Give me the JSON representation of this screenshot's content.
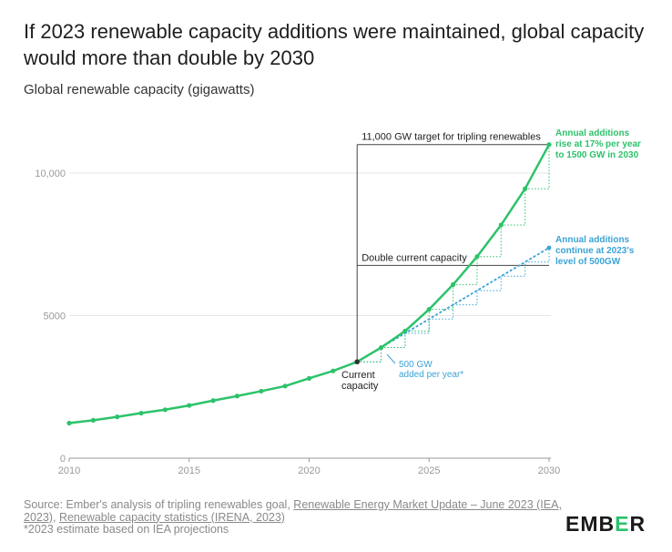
{
  "title": "If 2023 renewable capacity additions were maintained, global capacity would more than double by 2030",
  "subtitle": "Global renewable capacity (gigawatts)",
  "source": {
    "prefix": "Source: Ember's analysis of tripling renewables goal, ",
    "link1": "Renewable Energy Market Update – June 2023 (IEA, 2023)",
    "sep": ", ",
    "link2": "Renewable capacity statistics (IRENA, 2023)",
    "footnote": "*2023 estimate based on IEA projections"
  },
  "logo": {
    "pre": "EMB",
    "accent": "E",
    "post": "R"
  },
  "colors": {
    "green": "#2dc26b",
    "blue": "#3aa3d6",
    "grid": "#e6e6e6",
    "axis": "#999999",
    "reference": "#444444"
  },
  "chart_data": {
    "type": "line",
    "xlim": [
      2010,
      2030
    ],
    "ylim": [
      0,
      10000
    ],
    "xticks": [
      2010,
      2015,
      2020,
      2025,
      2030
    ],
    "yticks": [
      0,
      5000,
      10000
    ],
    "ytick_labels": [
      "0",
      "5000",
      "10,000"
    ],
    "grid": true,
    "series": [
      {
        "id": "historical",
        "color": "#2dc26b",
        "x": [
          2010,
          2011,
          2012,
          2013,
          2014,
          2015,
          2016,
          2017,
          2018,
          2019,
          2020,
          2021,
          2022
        ],
        "y": [
          1230,
          1330,
          1450,
          1580,
          1700,
          1850,
          2020,
          2180,
          2350,
          2530,
          2800,
          3060,
          3380
        ]
      },
      {
        "id": "rise-17",
        "color": "#2dc26b",
        "x": [
          2022,
          2023,
          2024,
          2025,
          2026,
          2027,
          2028,
          2029,
          2030
        ],
        "y": [
          3380,
          3880,
          4460,
          5220,
          6090,
          7070,
          8180,
          9450,
          11000
        ]
      },
      {
        "id": "constant-500",
        "color": "#3aa3d6",
        "x": [
          2022,
          2023,
          2024,
          2025,
          2026,
          2027,
          2028,
          2029,
          2030
        ],
        "y": [
          3380,
          3880,
          4380,
          4880,
          5380,
          5880,
          6380,
          6880,
          7380
        ]
      }
    ],
    "reference_lines": [
      {
        "y": 11000,
        "label": "11,000 GW target for tripling renewables"
      },
      {
        "y": 6760,
        "label": "Double current capacity"
      }
    ],
    "annotations": {
      "green_label": [
        "Annual additions",
        "rise at 17% per year",
        "to 1500 GW in 2030"
      ],
      "blue_label": [
        "Annual additions",
        "continue at 2023's",
        "level of 500GW"
      ],
      "current": [
        "Current",
        "capacity"
      ],
      "added": [
        "500 GW",
        "added per year*"
      ]
    }
  }
}
